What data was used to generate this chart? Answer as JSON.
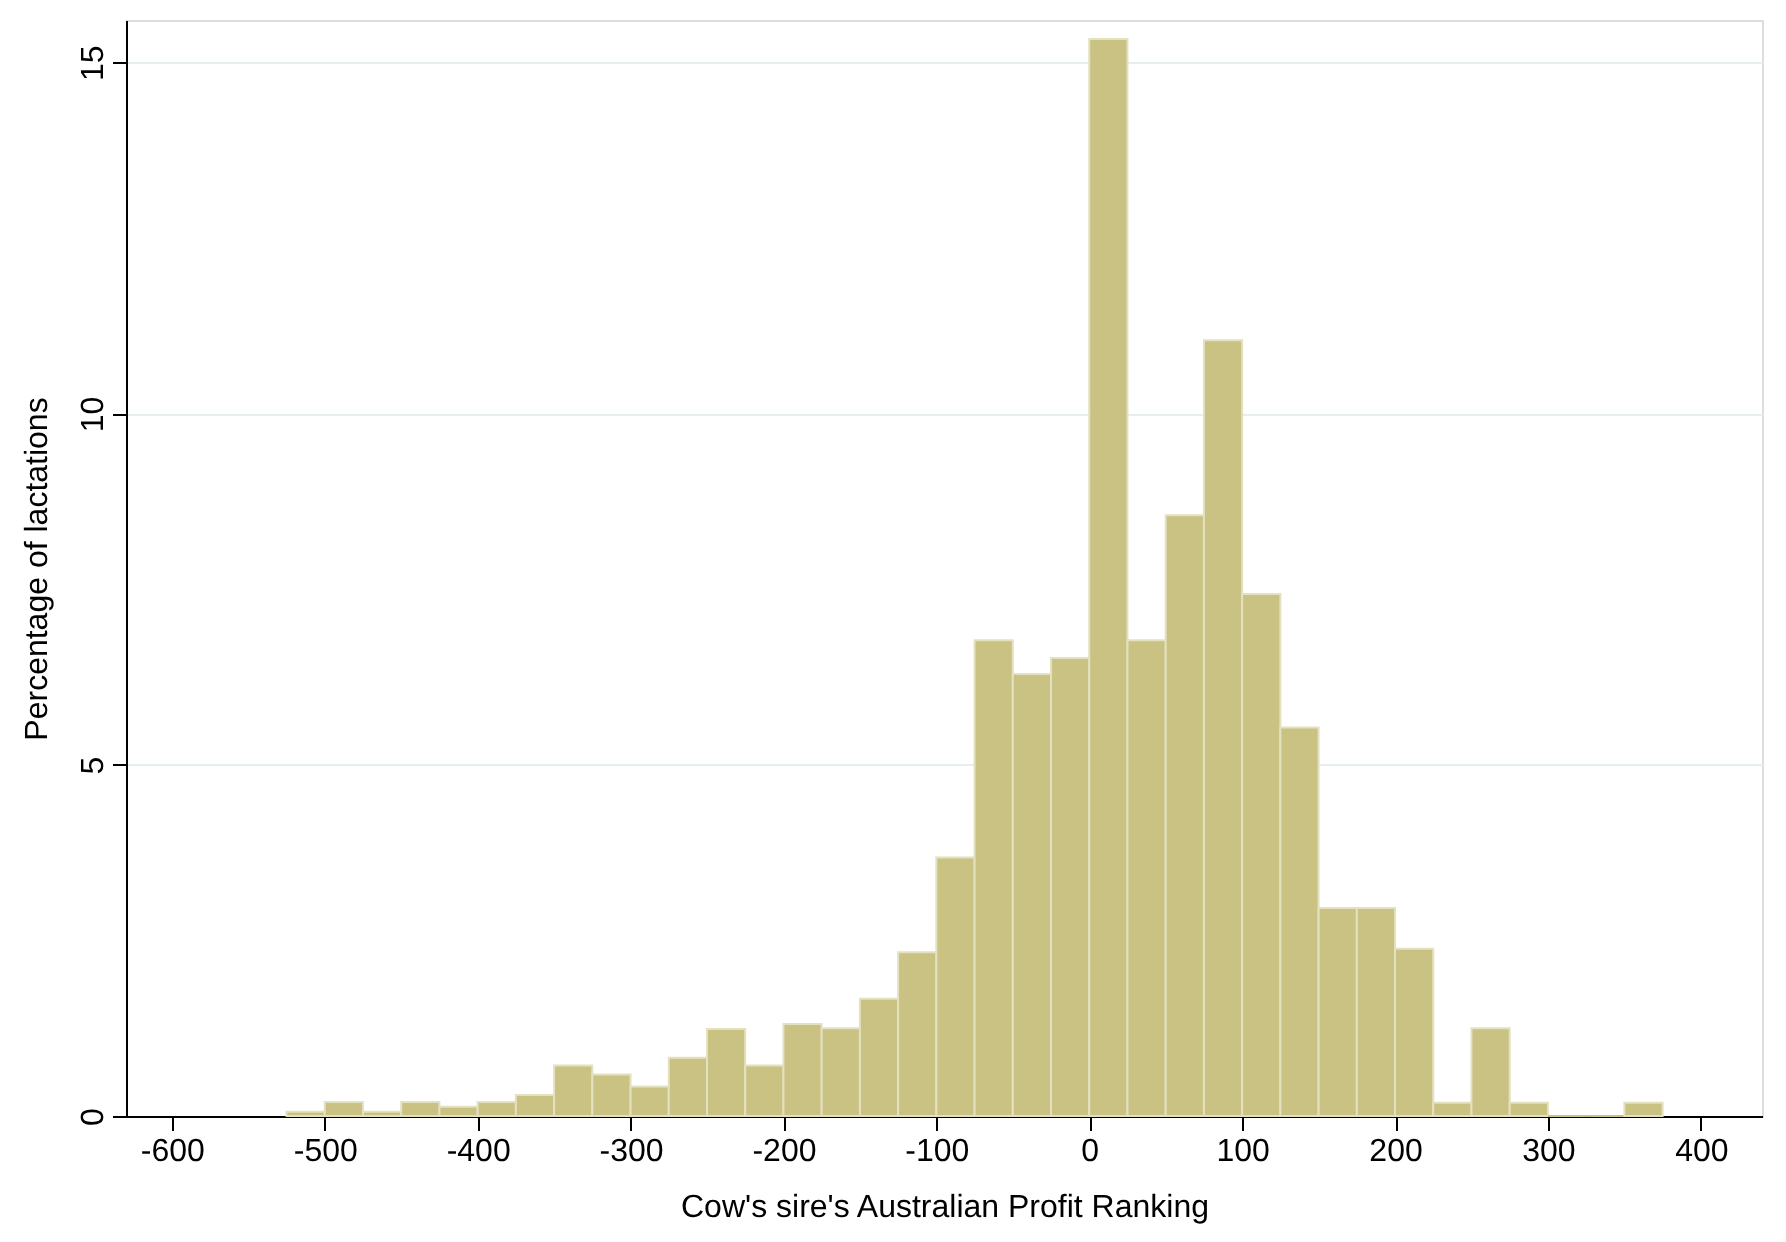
{
  "chart_data": {
    "type": "histogram",
    "xlabel": "Cow's sire's Australian Profit Ranking",
    "ylabel": "Percentage of lactations",
    "bins": [
      -525,
      -500,
      -475,
      -450,
      -425,
      -400,
      -375,
      -350,
      -325,
      -300,
      -275,
      -250,
      -225,
      -200,
      -175,
      -150,
      -125,
      -100,
      -75,
      -50,
      -25,
      0,
      25,
      50,
      75,
      100,
      125,
      150,
      175,
      200,
      225,
      250,
      275,
      300,
      325,
      350,
      375
    ],
    "values": [
      0.06,
      0.2,
      0.06,
      0.2,
      0.13,
      0.2,
      0.3,
      0.72,
      0.59,
      0.42,
      0.83,
      1.24,
      0.72,
      1.31,
      1.25,
      1.67,
      2.33,
      3.68,
      6.77,
      6.29,
      6.52,
      15.33,
      6.77,
      8.55,
      11.04,
      7.43,
      5.53,
      2.96,
      2.96,
      2.38,
      0.19,
      1.25,
      0.19,
      0,
      0,
      0.19
    ],
    "color": "#c9c283",
    "xlim": [
      -630,
      440
    ],
    "xticks": [
      -600,
      -500,
      -400,
      -300,
      -200,
      -100,
      0,
      100,
      200,
      300,
      400
    ],
    "ylim": [
      0,
      15.6
    ],
    "yticks": [
      0,
      5,
      10,
      15
    ],
    "grid": "y"
  }
}
